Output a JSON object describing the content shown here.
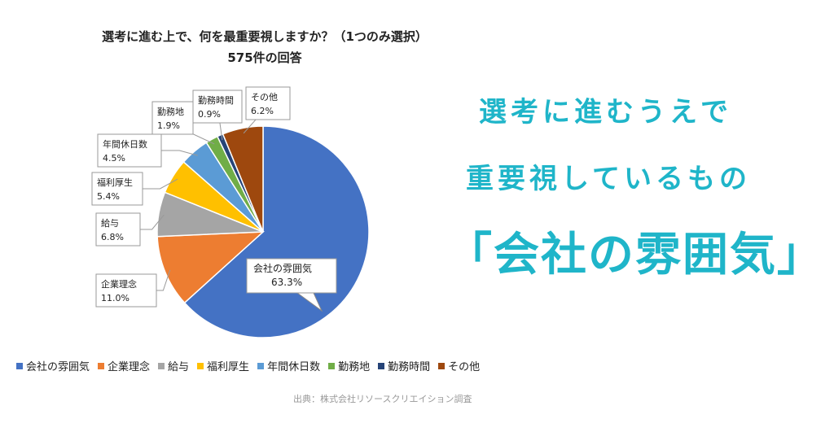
{
  "chart_data": {
    "type": "pie",
    "title": "選考に進む上で、何を最重要視しますか？（1つのみ選択）",
    "subtitle": "575件の回答",
    "legend_position": "bottom",
    "slices": [
      {
        "label": "会社の雰囲気",
        "value": 63.3,
        "value_label": "63.3%",
        "color": "#4472c4"
      },
      {
        "label": "企業理念",
        "value": 11.0,
        "value_label": "11.0%",
        "color": "#ed7d31"
      },
      {
        "label": "給与",
        "value": 6.8,
        "value_label": "6.8%",
        "color": "#a5a5a5"
      },
      {
        "label": "福利厚生",
        "value": 5.4,
        "value_label": "5.4%",
        "color": "#ffc000"
      },
      {
        "label": "年間休日数",
        "value": 4.5,
        "value_label": "4.5%",
        "color": "#5b9bd5"
      },
      {
        "label": "勤務地",
        "value": 1.9,
        "value_label": "1.9%",
        "color": "#70ad47"
      },
      {
        "label": "勤務時間",
        "value": 0.9,
        "value_label": "0.9%",
        "color": "#264478"
      },
      {
        "label": "その他",
        "value": 6.2,
        "value_label": "6.2%",
        "color": "#9e480e"
      }
    ]
  },
  "source": "出典：株式会社リソースクリエイション調査",
  "headline": {
    "line1": "選考に進むうえで",
    "line2": "重要視しているもの",
    "line3": "「会社の雰囲気」"
  },
  "colors": {
    "headline": "#1fb5c9"
  }
}
